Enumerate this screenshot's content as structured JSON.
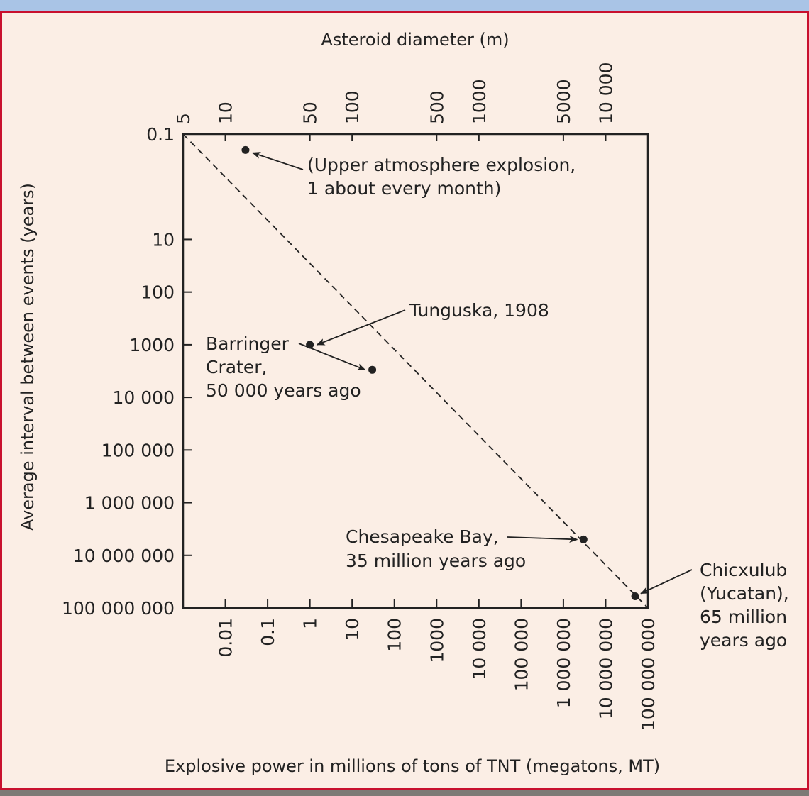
{
  "colors": {
    "accent": "#c8102e",
    "background": "#fbeee5",
    "ink": "#222222"
  },
  "chart_data": {
    "type": "scatter",
    "title": "",
    "xlabel": "Explosive power in millions of tons of TNT (megatons, MT)",
    "ylabel": "Average interval between events (years)",
    "x2label": "Asteroid diameter (m)",
    "xscale": "log",
    "yscale": "log",
    "xlim": [
      0.001,
      100000000
    ],
    "ylim": [
      0.1,
      100000000
    ],
    "x_ticks": [
      {
        "value": 0.01,
        "label": "0.01"
      },
      {
        "value": 0.1,
        "label": "0.1"
      },
      {
        "value": 1,
        "label": "1"
      },
      {
        "value": 10,
        "label": "10"
      },
      {
        "value": 100,
        "label": "100"
      },
      {
        "value": 1000,
        "label": "1000"
      },
      {
        "value": 10000,
        "label": "10 000"
      },
      {
        "value": 100000,
        "label": "100 000"
      },
      {
        "value": 1000000,
        "label": "1 000 000"
      },
      {
        "value": 10000000,
        "label": "10 000 000"
      },
      {
        "value": 100000000,
        "label": "100 000 000"
      }
    ],
    "y_ticks": [
      {
        "value": 0.1,
        "label": "0.1"
      },
      {
        "value": 10,
        "label": "10"
      },
      {
        "value": 100,
        "label": "100"
      },
      {
        "value": 1000,
        "label": "1000"
      },
      {
        "value": 10000,
        "label": "10 000"
      },
      {
        "value": 100000,
        "label": "100 000"
      },
      {
        "value": 1000000,
        "label": "1 000 000"
      },
      {
        "value": 10000000,
        "label": "10 000 000"
      },
      {
        "value": 100000000,
        "label": "100 000 000"
      }
    ],
    "x2_ticks": [
      {
        "value": 0.001,
        "label": "5"
      },
      {
        "value": 0.01,
        "label": "10"
      },
      {
        "value": 1,
        "label": "50"
      },
      {
        "value": 10,
        "label": "100"
      },
      {
        "value": 1000,
        "label": "500"
      },
      {
        "value": 10000,
        "label": "1000"
      },
      {
        "value": 1000000,
        "label": "5000"
      },
      {
        "value": 10000000,
        "label": "10 000"
      }
    ],
    "trend_line": {
      "style": "dashed",
      "from": [
        0.001,
        0.1
      ],
      "to": [
        100000000,
        100000000
      ]
    },
    "points": [
      {
        "name": "upper-atmosphere",
        "x": 0.03,
        "y": 0.2,
        "label": [
          "(Upper atmosphere explosion,",
          "1 about every month)"
        ]
      },
      {
        "name": "tunguska",
        "x": 1,
        "y": 1000,
        "label": [
          "Tunguska, 1908"
        ]
      },
      {
        "name": "barringer",
        "x": 30,
        "y": 3000,
        "label": [
          "Barringer",
          "Crater,",
          "50 000 years ago"
        ]
      },
      {
        "name": "chesapeake",
        "x": 3000000,
        "y": 5000000,
        "label": [
          "Chesapeake Bay,",
          "35 million years ago"
        ]
      },
      {
        "name": "chicxulub",
        "x": 50000000,
        "y": 60000000,
        "label": [
          "Chicxulub",
          "(Yucatan),",
          "65 million",
          "years ago"
        ]
      }
    ]
  }
}
